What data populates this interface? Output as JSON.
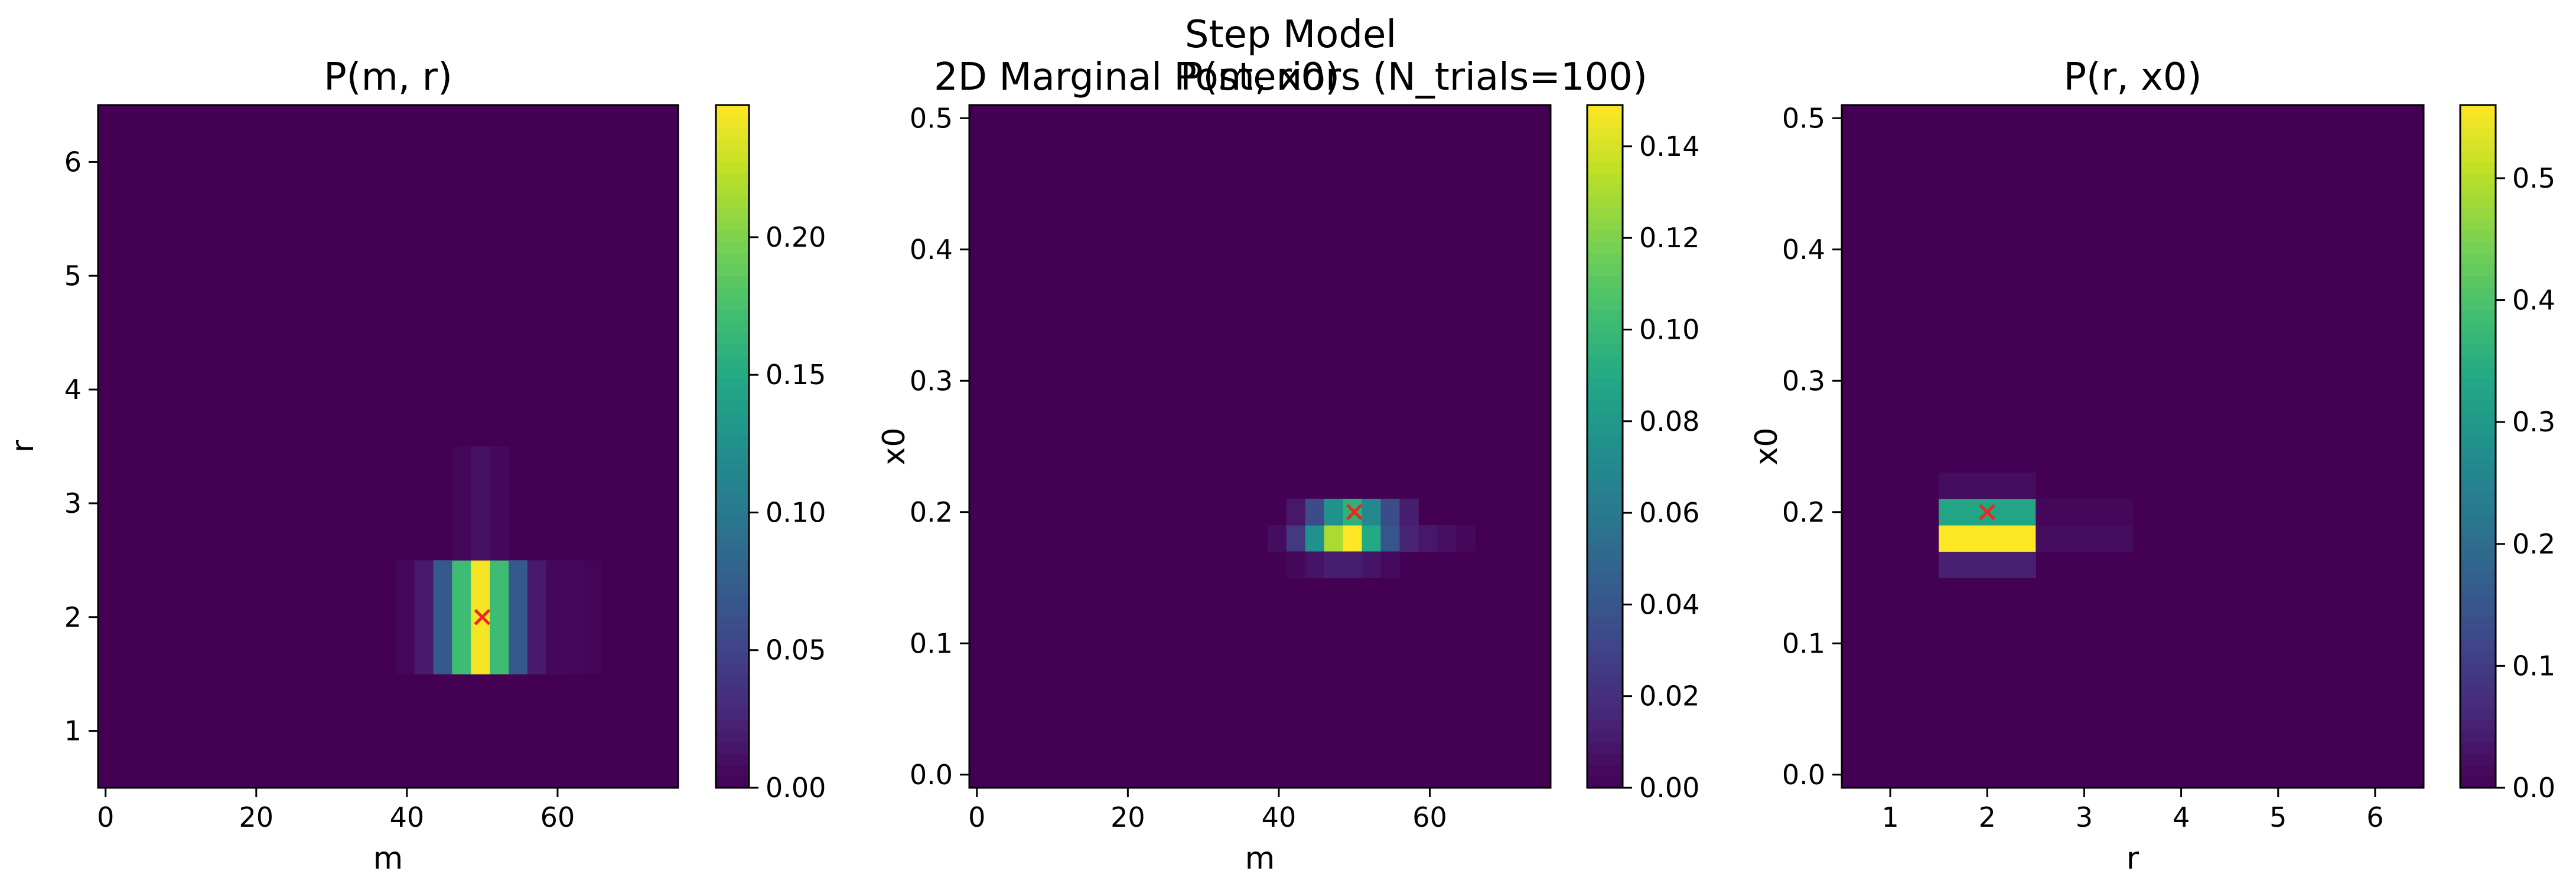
{
  "figure": {
    "title_line1": "Step Model",
    "title_line2": "2D Marginal Posteriors (N_trials=100)"
  },
  "colors": {
    "background_low": "#440154",
    "marker": "#e8291c"
  },
  "chart_data": [
    {
      "type": "heatmap",
      "title": "P(m, r)",
      "xlabel": "m",
      "ylabel": "r",
      "xlim": [
        -1,
        76
      ],
      "ylim": [
        0.5,
        6.5
      ],
      "xticks": [
        0,
        20,
        40,
        60
      ],
      "yticks": [
        1,
        2,
        3,
        4,
        5,
        6
      ],
      "ytick_decimals": 0,
      "colorbar": {
        "min": 0,
        "max": 0.248,
        "ticks": [
          0.0,
          0.05,
          0.1,
          0.15,
          0.2
        ],
        "decimals": 2
      },
      "cell_width": 2.5,
      "cell_height": 1.0,
      "cells": [
        {
          "x": 39.75,
          "y": 2,
          "v": 0.004
        },
        {
          "x": 42.25,
          "y": 2,
          "v": 0.018
        },
        {
          "x": 44.75,
          "y": 2,
          "v": 0.07
        },
        {
          "x": 47.25,
          "y": 2,
          "v": 0.17
        },
        {
          "x": 49.75,
          "y": 2,
          "v": 0.245
        },
        {
          "x": 52.25,
          "y": 2,
          "v": 0.17
        },
        {
          "x": 54.75,
          "y": 2,
          "v": 0.07
        },
        {
          "x": 57.25,
          "y": 2,
          "v": 0.018
        },
        {
          "x": 59.75,
          "y": 2,
          "v": 0.006
        },
        {
          "x": 62.25,
          "y": 2,
          "v": 0.004
        },
        {
          "x": 64.75,
          "y": 2,
          "v": 0.002
        },
        {
          "x": 47.25,
          "y": 3,
          "v": 0.004
        },
        {
          "x": 49.75,
          "y": 3,
          "v": 0.012
        },
        {
          "x": 52.25,
          "y": 3,
          "v": 0.005
        }
      ],
      "truth": {
        "x": 50,
        "y": 2
      }
    },
    {
      "type": "heatmap",
      "title": "P(m, x0)",
      "xlabel": "m",
      "ylabel": "x0",
      "xlim": [
        -1,
        76
      ],
      "ylim": [
        -0.01,
        0.51
      ],
      "xticks": [
        0,
        20,
        40,
        60
      ],
      "yticks": [
        0.0,
        0.1,
        0.2,
        0.3,
        0.4,
        0.5
      ],
      "ytick_decimals": 1,
      "colorbar": {
        "min": 0,
        "max": 0.149,
        "ticks": [
          0.0,
          0.02,
          0.04,
          0.06,
          0.08,
          0.1,
          0.12,
          0.14
        ],
        "decimals": 2
      },
      "cell_width": 2.5,
      "cell_height": 0.02,
      "cells": [
        {
          "x": 39.75,
          "y": 0.18,
          "v": 0.005
        },
        {
          "x": 42.25,
          "y": 0.18,
          "v": 0.025
        },
        {
          "x": 44.75,
          "y": 0.18,
          "v": 0.075
        },
        {
          "x": 47.25,
          "y": 0.18,
          "v": 0.13
        },
        {
          "x": 49.75,
          "y": 0.18,
          "v": 0.149
        },
        {
          "x": 52.25,
          "y": 0.18,
          "v": 0.09
        },
        {
          "x": 54.75,
          "y": 0.18,
          "v": 0.04
        },
        {
          "x": 57.25,
          "y": 0.18,
          "v": 0.015
        },
        {
          "x": 59.75,
          "y": 0.18,
          "v": 0.01
        },
        {
          "x": 62.25,
          "y": 0.18,
          "v": 0.006
        },
        {
          "x": 64.75,
          "y": 0.18,
          "v": 0.003
        },
        {
          "x": 42.25,
          "y": 0.2,
          "v": 0.01
        },
        {
          "x": 44.75,
          "y": 0.2,
          "v": 0.035
        },
        {
          "x": 47.25,
          "y": 0.2,
          "v": 0.075
        },
        {
          "x": 49.75,
          "y": 0.2,
          "v": 0.095
        },
        {
          "x": 52.25,
          "y": 0.2,
          "v": 0.07
        },
        {
          "x": 54.75,
          "y": 0.2,
          "v": 0.035
        },
        {
          "x": 57.25,
          "y": 0.2,
          "v": 0.012
        },
        {
          "x": 42.25,
          "y": 0.16,
          "v": 0.003
        },
        {
          "x": 44.75,
          "y": 0.16,
          "v": 0.008
        },
        {
          "x": 47.25,
          "y": 0.16,
          "v": 0.012
        },
        {
          "x": 49.75,
          "y": 0.16,
          "v": 0.012
        },
        {
          "x": 52.25,
          "y": 0.16,
          "v": 0.008
        },
        {
          "x": 54.75,
          "y": 0.16,
          "v": 0.004
        }
      ],
      "truth": {
        "x": 50,
        "y": 0.2
      }
    },
    {
      "type": "heatmap",
      "title": "P(r, x0)",
      "xlabel": "r",
      "ylabel": "x0",
      "xlim": [
        0.5,
        6.5
      ],
      "ylim": [
        -0.01,
        0.51
      ],
      "xticks": [
        1,
        2,
        3,
        4,
        5,
        6
      ],
      "yticks": [
        0.0,
        0.1,
        0.2,
        0.3,
        0.4,
        0.5
      ],
      "ytick_decimals": 1,
      "colorbar": {
        "min": 0,
        "max": 0.56,
        "ticks": [
          0.0,
          0.1,
          0.2,
          0.3,
          0.4,
          0.5
        ],
        "decimals": 1
      },
      "cell_width": 1.0,
      "cell_height": 0.02,
      "cells": [
        {
          "x": 2,
          "y": 0.16,
          "v": 0.05
        },
        {
          "x": 2,
          "y": 0.18,
          "v": 0.56
        },
        {
          "x": 2,
          "y": 0.2,
          "v": 0.33
        },
        {
          "x": 2,
          "y": 0.22,
          "v": 0.02
        },
        {
          "x": 3,
          "y": 0.18,
          "v": 0.02
        },
        {
          "x": 3,
          "y": 0.2,
          "v": 0.01
        }
      ],
      "truth": {
        "x": 2,
        "y": 0.2
      }
    }
  ]
}
